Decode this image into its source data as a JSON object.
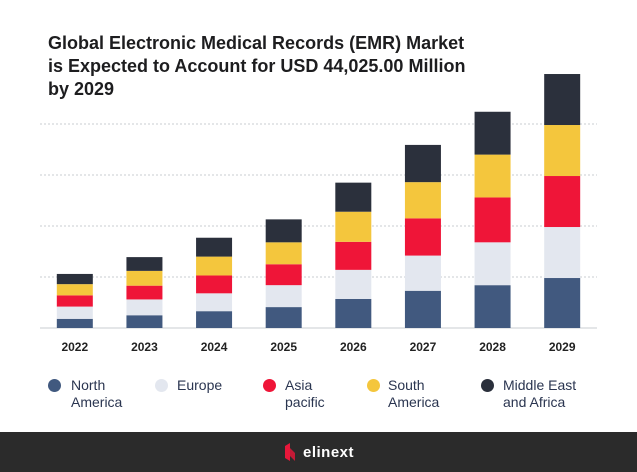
{
  "chart_data": {
    "type": "stacked-bar",
    "title": "Global Electronic Medical Records (EMR) Market is Expected to Account for USD 44,025.00 Million by 2029",
    "categories": [
      "2022",
      "2023",
      "2024",
      "2025",
      "2026",
      "2027",
      "2028",
      "2029"
    ],
    "series": [
      {
        "name": "North America",
        "color": "#41597f",
        "values": [
          1.8,
          2.5,
          3.3,
          4.1,
          5.7,
          7.3,
          8.4,
          9.8
        ]
      },
      {
        "name": "Europe",
        "color": "#e3e7ef",
        "values": [
          2.4,
          3.1,
          3.5,
          4.3,
          5.7,
          6.9,
          8.4,
          10
        ]
      },
      {
        "name": "Asia pacific",
        "color": "#ef1538",
        "values": [
          2.2,
          2.7,
          3.5,
          4.1,
          5.5,
          7.3,
          8.8,
          10
        ]
      },
      {
        "name": "South America",
        "color": "#f4c63d",
        "values": [
          2.2,
          2.9,
          3.7,
          4.3,
          5.9,
          7.1,
          8.4,
          10
        ]
      },
      {
        "name": "Middle East and Africa",
        "color": "#2b303c",
        "values": [
          2.0,
          2.7,
          3.7,
          4.5,
          5.7,
          7.3,
          8.4,
          10
        ]
      }
    ],
    "ylim": [
      0,
      50
    ],
    "gridlines": [
      10,
      20,
      30,
      40
    ]
  },
  "footer": {
    "brand": "elinext"
  }
}
